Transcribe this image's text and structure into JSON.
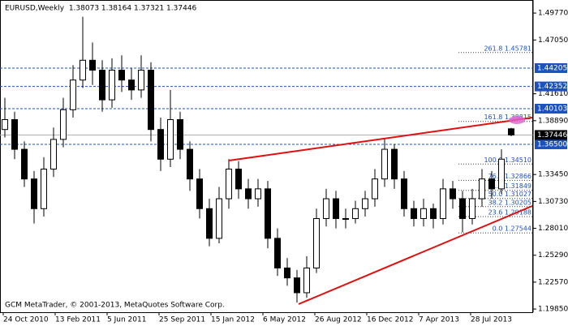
{
  "chart_data": {
    "type": "candlestick",
    "header_text": "EURUSD,Weekly  1.38073 1.38164 1.37321 1.37446",
    "footer_text": "GCM MetaTrader, © 2001-2013, MetaQuotes Software Corp.",
    "xtick_labels": [
      "24 Oct 2010",
      "13 Feb 2011",
      "5 Jun 2011",
      "25 Sep 2011",
      "15 Jan 2012",
      "6 May 2012",
      "26 Aug 2012",
      "16 Dec 2012",
      "7 Apr 2013",
      "28 Jul 2013"
    ],
    "ylim": [
      1.1953,
      1.5109
    ],
    "yticks": [
      {
        "value": 1.4977,
        "label": "1.49770"
      },
      {
        "value": 1.4705,
        "label": "1.47050"
      },
      {
        "value": 1.4161,
        "label": "1.41610"
      },
      {
        "value": 1.3889,
        "label": "1.38890"
      },
      {
        "value": 1.3345,
        "label": "1.33450"
      },
      {
        "value": 1.3073,
        "label": "1.30730"
      },
      {
        "value": 1.2801,
        "label": "1.28010"
      },
      {
        "value": 1.2529,
        "label": "1.25290"
      },
      {
        "value": 1.2257,
        "label": "1.22570"
      },
      {
        "value": 1.1985,
        "label": "1.19850"
      }
    ],
    "levels": [
      {
        "value": 1.44205,
        "label": "1.44205"
      },
      {
        "value": 1.42352,
        "label": "1.42352"
      },
      {
        "value": 1.40103,
        "label": "1.40103"
      },
      {
        "value": 1.365,
        "label": "1.36500"
      }
    ],
    "level_color": "#1c52c0",
    "current_price": {
      "value": 1.37446,
      "label": "1.37446"
    },
    "fib_levels": [
      {
        "value": 1.45781,
        "label": "261.8 1.45781"
      },
      {
        "value": 1.38815,
        "label": "161.8 1.38815"
      },
      {
        "value": 1.3451,
        "label": "100.0 1.34510"
      },
      {
        "value": 1.32866,
        "label": "76.4 1.32866"
      },
      {
        "value": 1.31849,
        "label": "61.8 1.31849"
      },
      {
        "value": 1.31027,
        "label": "50.0 1.31027"
      },
      {
        "value": 1.30205,
        "label": "38.2 1.30205"
      },
      {
        "value": 1.29188,
        "label": "23.6 1.29188"
      },
      {
        "value": 1.27544,
        "label": "0.0 1.27544"
      }
    ],
    "open": [
      1.38,
      1.39,
      1.36,
      1.33,
      1.3,
      1.34,
      1.37,
      1.4,
      1.43,
      1.45,
      1.44,
      1.41,
      1.44,
      1.43,
      1.42,
      1.44,
      1.38,
      1.35,
      1.39,
      1.36,
      1.33,
      1.3,
      1.27,
      1.31,
      1.34,
      1.32,
      1.31,
      1.32,
      1.27,
      1.24,
      1.23,
      1.215,
      1.24,
      1.29,
      1.31,
      1.29,
      1.29,
      1.3,
      1.31,
      1.33,
      1.36,
      1.33,
      1.3,
      1.29,
      1.3,
      1.29,
      1.32,
      1.31,
      1.29,
      1.31,
      1.33,
      1.32,
      1.38073
    ],
    "high": [
      1.412,
      1.398,
      1.368,
      1.338,
      1.352,
      1.382,
      1.412,
      1.445,
      1.494,
      1.468,
      1.45,
      1.452,
      1.455,
      1.442,
      1.455,
      1.448,
      1.392,
      1.42,
      1.398,
      1.368,
      1.34,
      1.31,
      1.322,
      1.35,
      1.348,
      1.33,
      1.33,
      1.328,
      1.28,
      1.25,
      1.238,
      1.252,
      1.3,
      1.32,
      1.318,
      1.3,
      1.308,
      1.318,
      1.34,
      1.371,
      1.365,
      1.338,
      1.308,
      1.31,
      1.305,
      1.33,
      1.328,
      1.318,
      1.32,
      1.34,
      1.338,
      1.36,
      1.38164
    ],
    "low": [
      1.372,
      1.35,
      1.322,
      1.285,
      1.292,
      1.332,
      1.362,
      1.392,
      1.422,
      1.425,
      1.398,
      1.402,
      1.418,
      1.41,
      1.412,
      1.368,
      1.338,
      1.342,
      1.35,
      1.318,
      1.29,
      1.262,
      1.265,
      1.3,
      1.31,
      1.3,
      1.302,
      1.26,
      1.232,
      1.222,
      1.205,
      1.21,
      1.235,
      1.282,
      1.28,
      1.28,
      1.285,
      1.292,
      1.302,
      1.322,
      1.32,
      1.292,
      1.282,
      1.282,
      1.28,
      1.284,
      1.3,
      1.276,
      1.284,
      1.302,
      1.31,
      1.315,
      1.37321
    ],
    "close": [
      1.39,
      1.36,
      1.33,
      1.3,
      1.34,
      1.37,
      1.4,
      1.43,
      1.45,
      1.44,
      1.41,
      1.44,
      1.43,
      1.42,
      1.44,
      1.38,
      1.35,
      1.39,
      1.36,
      1.33,
      1.3,
      1.27,
      1.31,
      1.34,
      1.32,
      1.31,
      1.32,
      1.27,
      1.24,
      1.23,
      1.215,
      1.24,
      1.29,
      1.31,
      1.29,
      1.29,
      1.3,
      1.31,
      1.33,
      1.36,
      1.33,
      1.3,
      1.29,
      1.3,
      1.29,
      1.32,
      1.31,
      1.29,
      1.31,
      1.33,
      1.32,
      1.35,
      1.37446
    ]
  }
}
